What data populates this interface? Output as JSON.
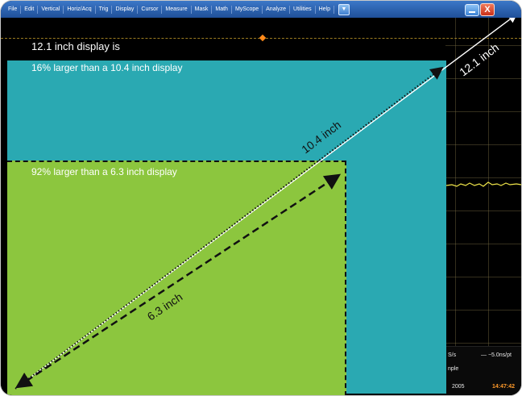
{
  "menu": {
    "items": [
      "File",
      "Edit",
      "Vertical",
      "Horiz/Acq",
      "Trig",
      "Display",
      "Cursor",
      "Measure",
      "Mask",
      "Math",
      "MyScope",
      "Analyze",
      "Utilities",
      "Help"
    ],
    "dropdown_icon": "chevron-down-icon",
    "minimize_icon": "minimize-icon",
    "close_icon": "close-icon",
    "close_glyph": "X"
  },
  "overlay": {
    "line1": "12.1 inch display is",
    "line2": "16% larger than a 10.4 inch display",
    "line3": "92% larger than a 6.3 inch display",
    "diag_121": "12.1 inch",
    "diag_104": "10.4 inch",
    "diag_63": "6.3 inch"
  },
  "status": {
    "rate": "S/s",
    "res": "—  −5.0ns/pt",
    "mode": "nple",
    "year": "2005",
    "time": "14:47:42"
  },
  "colors": {
    "menu_bar": "#2a62b4",
    "box_104": "#2aa9b2",
    "box_63": "#8cc63e",
    "trace": "#f1e64a",
    "time_text": "#ff9a2a"
  }
}
